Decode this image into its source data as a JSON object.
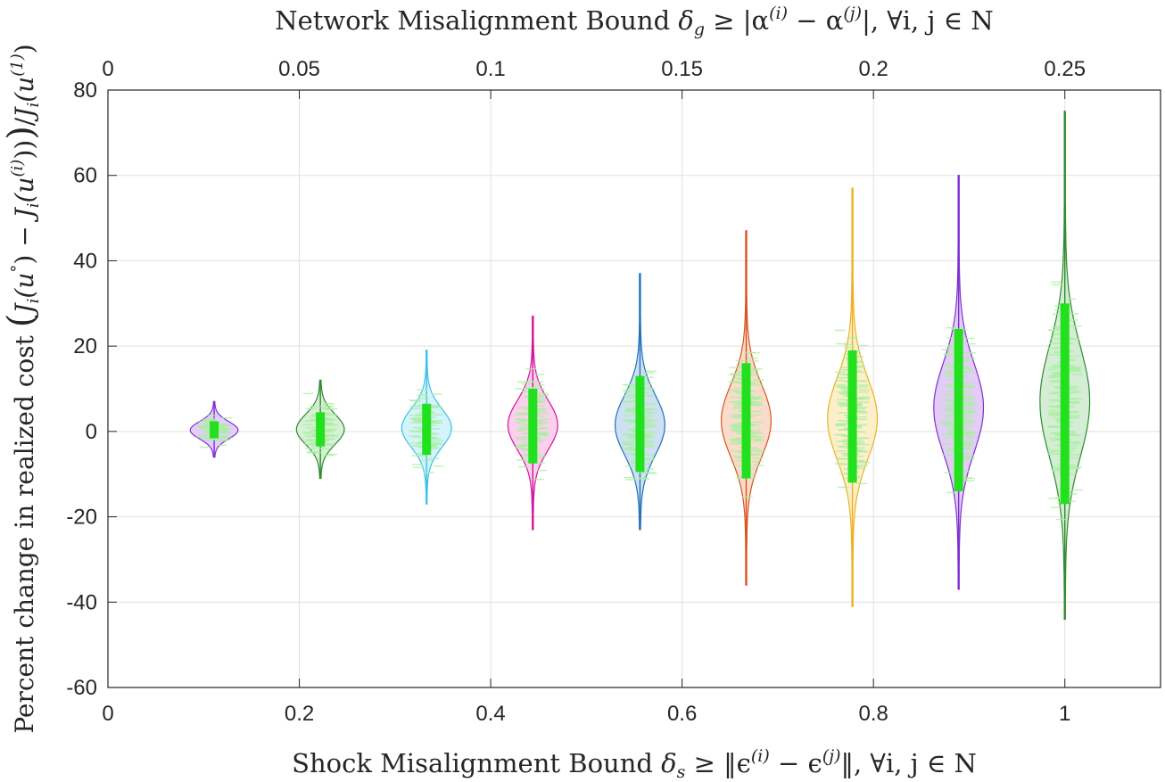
{
  "chart_data": {
    "type": "violin",
    "title": "",
    "xlabel": "Shock Misalignment Bound δs ≥ ‖ϵ(i) − ϵ(j)‖, ∀i, j ∈ N",
    "xlabel_top": "Network Misalignment Bound δg ≥ |α(i) − α(j)|, ∀i, j ∈ N",
    "ylabel": "Percent change in realized cost (Ji(u°) − Ji(u(i)))/Ji(u(1))",
    "xlim": [
      0,
      1.1
    ],
    "ylim": [
      -60,
      80
    ],
    "xlim_top": [
      0,
      0.275
    ],
    "xticks": [
      "0",
      "0.2",
      "0.4",
      "0.6",
      "0.8",
      "1"
    ],
    "xtick_values": [
      0,
      0.2,
      0.4,
      0.6,
      0.8,
      1
    ],
    "xticks_top": [
      "0",
      "0.05",
      "0.1",
      "0.15",
      "0.2",
      "0.25"
    ],
    "xtick_top_values": [
      0,
      0.05,
      0.1,
      0.15,
      0.2,
      0.25
    ],
    "yticks": [
      "80",
      "60",
      "40",
      "20",
      "0",
      "-20",
      "-40",
      "-60"
    ],
    "ytick_values": [
      80,
      60,
      40,
      20,
      0,
      -20,
      -40,
      -60
    ],
    "grid": true,
    "series": [
      {
        "name": "δs=0.111",
        "x": 0.111,
        "median": 0.3,
        "min": -6,
        "max": 7,
        "q1": -1.6,
        "q3": 2.4,
        "spread": 2.0,
        "halfwidth": 0.025,
        "fill": "#e6ccff",
        "stroke": "#7e2fcf"
      },
      {
        "name": "δs=0.222",
        "x": 0.222,
        "median": 0.5,
        "min": -11,
        "max": 12,
        "q1": -3.5,
        "q3": 4.5,
        "spread": 3.5,
        "halfwidth": 0.025,
        "fill": "#d8efd8",
        "stroke": "#2e8b2e"
      },
      {
        "name": "δs=0.333",
        "x": 0.333,
        "median": 0.8,
        "min": -17,
        "max": 19,
        "q1": -5.5,
        "q3": 6.5,
        "spread": 4.5,
        "halfwidth": 0.026,
        "fill": "#d5f3fb",
        "stroke": "#3cc1e8"
      },
      {
        "name": "δs=0.444",
        "x": 0.444,
        "median": 1.5,
        "min": -23,
        "max": 27,
        "q1": -7.5,
        "q3": 10,
        "spread": 5.8,
        "halfwidth": 0.026,
        "fill": "#fad0ec",
        "stroke": "#d3159e"
      },
      {
        "name": "δs=0.556",
        "x": 0.556,
        "median": 1.5,
        "min": -23,
        "max": 37,
        "q1": -9.5,
        "q3": 13,
        "spread": 7.0,
        "halfwidth": 0.026,
        "fill": "#cfe0f2",
        "stroke": "#1f72c0"
      },
      {
        "name": "δs=0.667",
        "x": 0.667,
        "median": 2.5,
        "min": -36,
        "max": 47,
        "q1": -11,
        "q3": 16,
        "spread": 8.5,
        "halfwidth": 0.026,
        "fill": "#fadccc",
        "stroke": "#d9531e"
      },
      {
        "name": "δs=0.778",
        "x": 0.778,
        "median": 3.0,
        "min": -41,
        "max": 57,
        "q1": -12,
        "q3": 19,
        "spread": 9.5,
        "halfwidth": 0.026,
        "fill": "#fcefc9",
        "stroke": "#edb120"
      },
      {
        "name": "δs=0.889",
        "x": 0.889,
        "median": 5.5,
        "min": -37,
        "max": 60,
        "q1": -14,
        "q3": 24,
        "spread": 10.5,
        "halfwidth": 0.026,
        "fill": "#e3ccf5",
        "stroke": "#7e2fcf"
      },
      {
        "name": "δs=1",
        "x": 1.0,
        "median": 7.0,
        "min": -44,
        "max": 75,
        "q1": -17,
        "q3": 30,
        "spread": 13.0,
        "halfwidth": 0.026,
        "fill": "#d5ecd5",
        "stroke": "#2e8b2e"
      }
    ],
    "overlay_color": "#22e01e",
    "overlay_light_color": "#a8f0a0"
  },
  "labels": {
    "xlabel_main": "Shock Misalignment Bound ",
    "xlabel_delta": "δ",
    "xlabel_sub": "s",
    "xlabel_rest": " ≥ ‖ϵ",
    "xlabel_sup1": "(i)",
    "xlabel_mid": " − ϵ",
    "xlabel_sup2": "(j)",
    "xlabel_end": "‖, ∀i, j ∈ N",
    "top_main": "Network Misalignment Bound ",
    "top_delta": "δ",
    "top_sub": "g",
    "top_rest": " ≥ |α",
    "top_sup1": "(i)",
    "top_mid": " − α",
    "top_sup2": "(j)",
    "top_end": "|, ∀i, j ∈ N",
    "y_main": "Percent change in realized cost ",
    "y_paren_l": "(",
    "y_J1": "J",
    "y_i1": "i",
    "y_u1": "(u",
    "y_deg": "°",
    "y_close1": ") − ",
    "y_J2": "J",
    "y_i2": "i",
    "y_u2": "(u",
    "y_sup_i": "(i)",
    "y_close2": "))",
    "y_paren_r": ")",
    "y_slash": "/",
    "y_J3": "J",
    "y_i3": "i",
    "y_u3": "(u",
    "y_sup_1": "(1)",
    "y_close3": ")"
  }
}
